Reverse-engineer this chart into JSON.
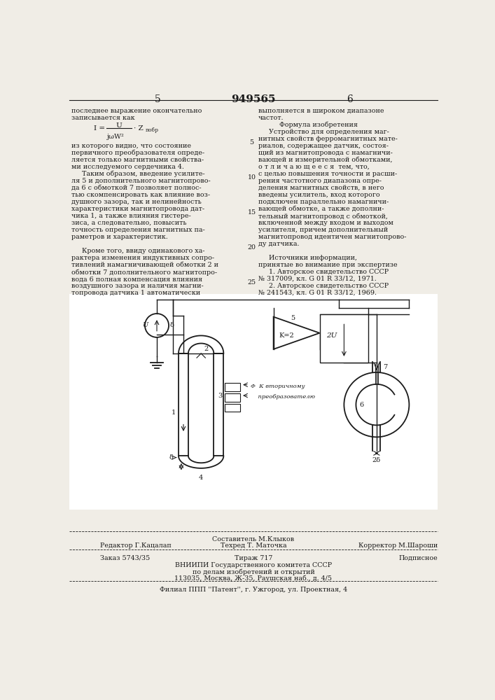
{
  "bg_color": "#f0ede6",
  "text_color": "#1a1a1a",
  "page_number_left": "5",
  "patent_number": "949565",
  "page_number_right": "6",
  "left_col_lines": [
    "последнее выражение окончательно",
    "записывается как",
    "",
    "",
    "",
    "из которого видно, что состояние",
    "первичного преобразователя опреде-",
    "ляется только магнитными свойства-",
    "ми исследуемого сердечника 4.",
    "     Таким образом, введение усилите-",
    "ля 5 и дополнительного магнитопрово-",
    "да 6 с обмоткой 7 позволяет полнос-",
    "тью скомпенсировать как влияние воз-",
    "душного зазора, так и нелинейность",
    "характеристики магнитопровода дат-",
    "чика 1, а также влияния гистере-",
    "зиса, а следовательно, повысить",
    "точность определения магнитных па-",
    "раметров и характеристик.",
    "",
    "     Кроме того, ввиду одинакового ха-",
    "рактера изменения индуктивных сопро-",
    "тивлений намагничивающей обмотки 2 и",
    "обмотки 7 дополнительного магнитопро-",
    "вода 6 полная компенсация влияния",
    "воздушного зазора и наличия магни-",
    "топровода датчика 1 автоматически"
  ],
  "right_col_lines": [
    "выполняется в широком диапазоне",
    "частот.",
    "          Формула изобретения",
    "     Устройство для определения маг-",
    "нитных свойств ферромагнитных мате-",
    "риалов, содержащее датчик, состоя-",
    "щий из магнитопровода с намагничи-",
    "вающей и измерительной обмотками,",
    "о т л и ч а ю щ е е с я  тем, что,",
    "с целью повышения точности и расши-",
    "рения частотного диапазона опре-",
    "деления магнитных свойств, в него",
    "введены усилитель, вход которого",
    "подключен параллельно намагничи-",
    "вающей обмотке, а также дополни-",
    "тельный магнитопровод с обмоткой,",
    "включенной между входом и выходом",
    "усилителя, причем дополнительный",
    "магнитопровод идентичен магнитопрово-",
    "ду датчика.",
    "",
    "     Источники информации,",
    "принятые во внимание при экспертизе",
    "     1. Авторское свидетельство СССР",
    "№ 317009, кл. G 01 R 33/12, 1971.",
    "     2. Авторское свидетельство СССР",
    "№ 241543, кл. G 01 R 33/12, 1969."
  ],
  "footer_editor": "Редактор Г.Кацалап",
  "footer_composer": "Составитель М.Клыков",
  "footer_tech": "Техред Т. Маточка",
  "footer_corrector": "Корректор М.Шароши",
  "footer_order": "Заказ 5743/35",
  "footer_edition": "Тираж 717",
  "footer_subscription": "Подписное",
  "footer_org1": "ВНИИПИ Государственного комитета СССР",
  "footer_org2": "по делам изобретений и открытий",
  "footer_address": "113035, Москва, Ж-35, Раушская наб., д. 4/5",
  "footer_branch": "Филиал ППП ''Патент'', г. Ужгород, ул. Проектная, 4"
}
